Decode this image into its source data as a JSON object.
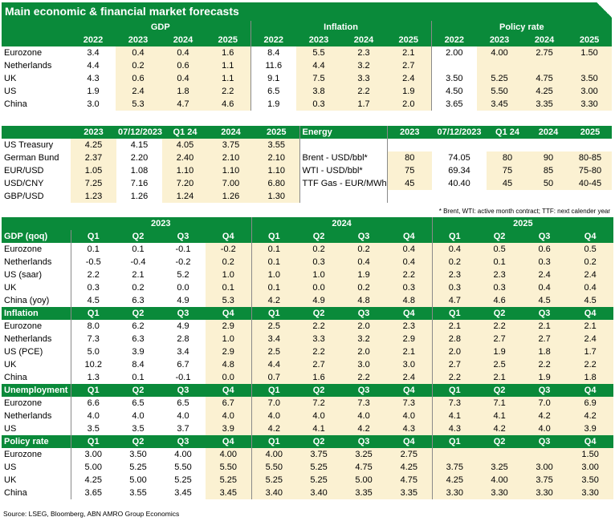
{
  "title": "Main economic & financial market forecasts",
  "forecast_years": [
    "2022",
    "2023",
    "2024",
    "2025"
  ],
  "table1": {
    "groups": [
      "GDP",
      "Inflation",
      "Policy rate"
    ],
    "rows": [
      {
        "name": "Eurozone",
        "gdp": [
          "3.4",
          "0.4",
          "0.4",
          "1.6"
        ],
        "inflation": [
          "8.4",
          "5.5",
          "2.3",
          "2.1"
        ],
        "policy": [
          "2.00",
          "4.00",
          "2.75",
          "1.50"
        ]
      },
      {
        "name": "Netherlands",
        "gdp": [
          "4.4",
          "0.2",
          "0.6",
          "1.1"
        ],
        "inflation": [
          "11.6",
          "4.4",
          "3.2",
          "2.7"
        ],
        "policy": [
          "",
          "",
          "",
          ""
        ]
      },
      {
        "name": "UK",
        "gdp": [
          "4.3",
          "0.6",
          "0.4",
          "1.1"
        ],
        "inflation": [
          "9.1",
          "7.5",
          "3.3",
          "2.4"
        ],
        "policy": [
          "3.50",
          "5.25",
          "4.75",
          "3.50"
        ]
      },
      {
        "name": "US",
        "gdp": [
          "1.9",
          "2.4",
          "1.8",
          "2.2"
        ],
        "inflation": [
          "6.5",
          "3.8",
          "2.2",
          "1.9"
        ],
        "policy": [
          "4.50",
          "5.50",
          "4.25",
          "3.00"
        ]
      },
      {
        "name": "China",
        "gdp": [
          "3.0",
          "5.3",
          "4.7",
          "4.6"
        ],
        "inflation": [
          "1.9",
          "0.3",
          "1.7",
          "2.0"
        ],
        "policy": [
          "3.65",
          "3.45",
          "3.35",
          "3.30"
        ]
      }
    ]
  },
  "table2": {
    "headers": [
      "2023",
      "07/12/2023",
      "Q1 24",
      "2024",
      "2025"
    ],
    "energy_label": "Energy",
    "rows": [
      {
        "name": "US Treasury",
        "v": [
          "4.25",
          "4.15",
          "4.05",
          "3.75",
          "3.55"
        ],
        "ename": "",
        "e": [
          "",
          "",
          "",
          "",
          ""
        ]
      },
      {
        "name": "German Bund",
        "v": [
          "2.37",
          "2.20",
          "2.40",
          "2.10",
          "2.10"
        ],
        "ename": "Brent - USD/bbl*",
        "e": [
          "80",
          "74.05",
          "80",
          "90",
          "80-85"
        ]
      },
      {
        "name": "EUR/USD",
        "v": [
          "1.05",
          "1.08",
          "1.10",
          "1.10",
          "1.10"
        ],
        "ename": "WTI - USD/bbl*",
        "e": [
          "75",
          "69.34",
          "75",
          "85",
          "75-80"
        ]
      },
      {
        "name": "USD/CNY",
        "v": [
          "7.25",
          "7.16",
          "7.20",
          "7.00",
          "6.80"
        ],
        "ename": "TTF Gas - EUR/MWh*",
        "e": [
          "45",
          "40.40",
          "45",
          "50",
          "40-45"
        ]
      },
      {
        "name": "GBP/USD",
        "v": [
          "1.23",
          "1.26",
          "1.24",
          "1.26",
          "1.30"
        ],
        "ename": "",
        "e": [
          "",
          "",
          "",
          "",
          ""
        ]
      }
    ],
    "footnote": "* Brent, WTI: active month contract; TTF: next calender year"
  },
  "table3": {
    "years": [
      "2023",
      "2024",
      "2025"
    ],
    "quarters": [
      "Q1",
      "Q2",
      "Q3",
      "Q4"
    ],
    "sections": [
      {
        "label": "GDP (qoq)",
        "rows": [
          {
            "name": "Eurozone",
            "v": [
              "0.1",
              "0.1",
              "-0.1",
              "-0.2",
              "0.1",
              "0.2",
              "0.2",
              "0.4",
              "0.4",
              "0.5",
              "0.6",
              "0.5"
            ]
          },
          {
            "name": "Netherlands",
            "v": [
              "-0.5",
              "-0.4",
              "-0.2",
              "0.2",
              "0.1",
              "0.3",
              "0.4",
              "0.4",
              "0.2",
              "0.1",
              "0.3",
              "0.2"
            ]
          },
          {
            "name": "US (saar)",
            "v": [
              "2.2",
              "2.1",
              "5.2",
              "1.0",
              "1.0",
              "1.0",
              "1.9",
              "2.2",
              "2.3",
              "2.3",
              "2.4",
              "2.4"
            ]
          },
          {
            "name": "UK",
            "v": [
              "0.3",
              "0.2",
              "0.0",
              "0.1",
              "0.1",
              "0.0",
              "0.2",
              "0.3",
              "0.3",
              "0.3",
              "0.4",
              "0.4"
            ]
          },
          {
            "name": "China (yoy)",
            "v": [
              "4.5",
              "6.3",
              "4.9",
              "5.3",
              "4.2",
              "4.9",
              "4.8",
              "4.8",
              "4.7",
              "4.6",
              "4.5",
              "4.5"
            ]
          }
        ]
      },
      {
        "label": "Inflation",
        "rows": [
          {
            "name": "Eurozone",
            "v": [
              "8.0",
              "6.2",
              "4.9",
              "2.9",
              "2.5",
              "2.2",
              "2.0",
              "2.3",
              "2.1",
              "2.2",
              "2.1",
              "2.1"
            ]
          },
          {
            "name": "Netherlands",
            "v": [
              "7.3",
              "6.3",
              "2.8",
              "1.0",
              "3.4",
              "3.3",
              "3.2",
              "2.9",
              "2.8",
              "2.7",
              "2.7",
              "2.4"
            ]
          },
          {
            "name": "US (PCE)",
            "v": [
              "5.0",
              "3.9",
              "3.4",
              "2.9",
              "2.5",
              "2.2",
              "2.0",
              "2.1",
              "2.0",
              "1.9",
              "1.8",
              "1.7"
            ]
          },
          {
            "name": "UK",
            "v": [
              "10.2",
              "8.4",
              "6.7",
              "4.8",
              "4.4",
              "2.7",
              "3.0",
              "3.0",
              "2.7",
              "2.5",
              "2.2",
              "2.2"
            ]
          },
          {
            "name": "China",
            "v": [
              "1.3",
              "0.1",
              "-0.1",
              "0.0",
              "0.7",
              "1.6",
              "2.2",
              "2.4",
              "2.2",
              "2.1",
              "1.9",
              "1.8"
            ]
          }
        ]
      },
      {
        "label": "Unemployment",
        "rows": [
          {
            "name": "Eurozone",
            "v": [
              "6.6",
              "6.5",
              "6.5",
              "6.7",
              "7.0",
              "7.2",
              "7.3",
              "7.3",
              "7.3",
              "7.1",
              "7.0",
              "6.9"
            ]
          },
          {
            "name": "Netherlands",
            "v": [
              "4.0",
              "4.0",
              "4.0",
              "4.0",
              "4.0",
              "4.0",
              "4.0",
              "4.0",
              "4.1",
              "4.1",
              "4.2",
              "4.2"
            ]
          },
          {
            "name": "US",
            "v": [
              "3.5",
              "3.5",
              "3.7",
              "3.9",
              "4.2",
              "4.1",
              "4.2",
              "4.3",
              "4.3",
              "4.2",
              "4.0",
              "3.9"
            ]
          }
        ]
      },
      {
        "label": "Policy rate",
        "rows": [
          {
            "name": "Eurozone",
            "v": [
              "3.00",
              "3.50",
              "4.00",
              "4.00",
              "4.00",
              "3.75",
              "3.25",
              "2.75",
              "",
              "",
              "",
              "1.50"
            ]
          },
          {
            "name": "US",
            "v": [
              "5.00",
              "5.25",
              "5.50",
              "5.50",
              "5.50",
              "5.25",
              "4.75",
              "4.25",
              "3.75",
              "3.25",
              "3.00",
              "3.00"
            ]
          },
          {
            "name": "UK",
            "v": [
              "4.25",
              "5.00",
              "5.25",
              "5.25",
              "5.25",
              "5.25",
              "5.00",
              "4.75",
              "4.25",
              "4.00",
              "3.75",
              "3.50"
            ]
          },
          {
            "name": "China",
            "v": [
              "3.65",
              "3.55",
              "3.45",
              "3.45",
              "3.40",
              "3.40",
              "3.35",
              "3.35",
              "3.30",
              "3.30",
              "3.30",
              "3.30"
            ]
          }
        ]
      }
    ]
  },
  "source": "Source: LSEG, Bloomberg, ABN AMRO Group Economics",
  "colors": {
    "header_green": "#0a8a3a",
    "highlight": "#fbf1d2"
  }
}
